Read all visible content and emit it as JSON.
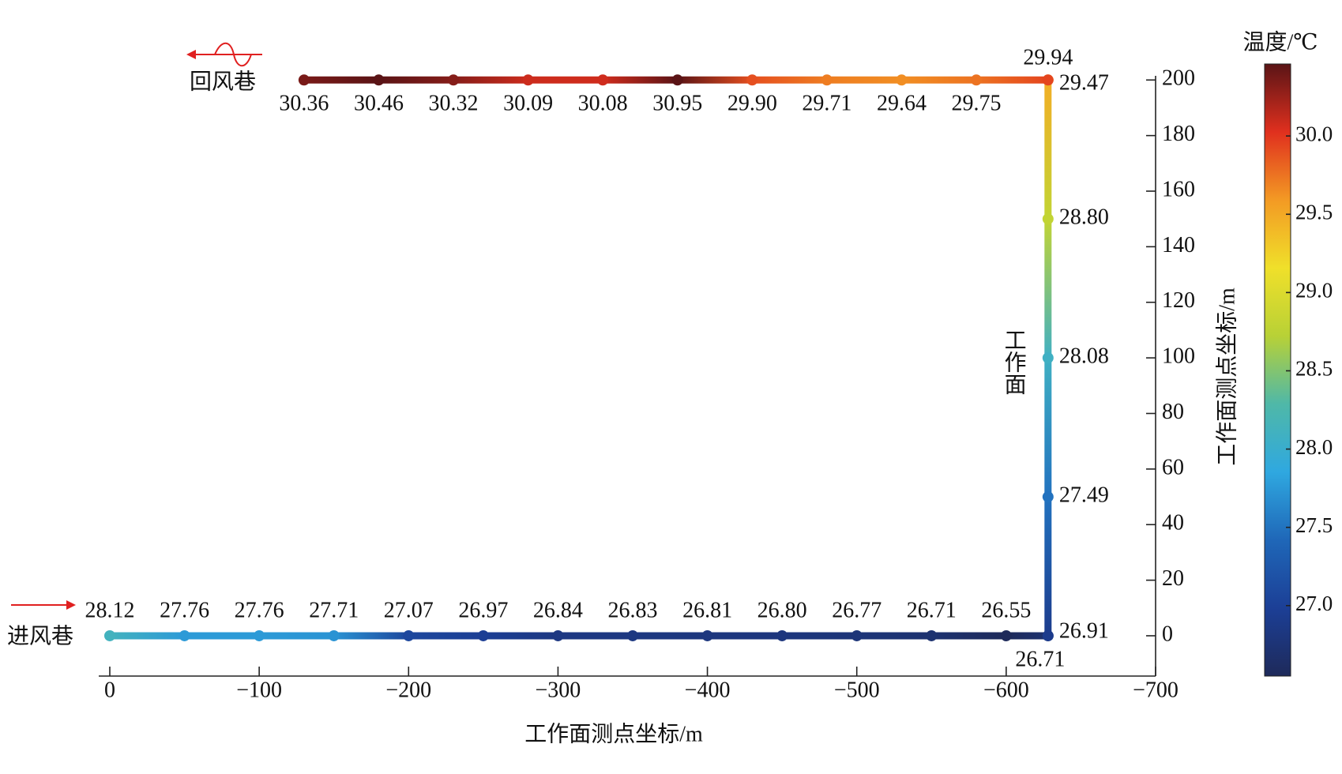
{
  "chart_data": {
    "type": "path-temperature",
    "x_label": "工作面测点坐标/m",
    "y_label": "工作面测点坐标/m",
    "xlim": [
      0,
      -700
    ],
    "xticks": [
      0,
      {
        "value": -100,
        "label": "−100"
      },
      {
        "value": -200,
        "label": "−200"
      },
      {
        "value": -300,
        "label": "−300"
      },
      {
        "value": -400,
        "label": "−400"
      },
      {
        "value": -500,
        "label": "−500"
      },
      {
        "value": -600,
        "label": "−600"
      },
      {
        "value": -700,
        "label": "−700"
      }
    ],
    "ylim": [
      -14.5,
      201.5
    ],
    "yticks": [
      0,
      20,
      40,
      60,
      80,
      100,
      120,
      140,
      160,
      180,
      200
    ],
    "grid": false,
    "colorbar": {
      "title": "温度/℃",
      "clim": [
        26.55,
        30.46
      ],
      "ticks": [
        {
          "value": 27,
          "label": "27.0"
        },
        {
          "value": 27.5,
          "label": "27.5"
        },
        {
          "value": 28,
          "label": "28.0"
        },
        {
          "value": 28.5,
          "label": "28.5"
        },
        {
          "value": 29,
          "label": "29.0"
        },
        {
          "value": 29.5,
          "label": "29.5"
        },
        {
          "value": 30,
          "label": "30.0"
        }
      ],
      "colormap": [
        "#1e2a5a",
        "#1c3f96",
        "#1f67b8",
        "#2fa8e0",
        "#4fb8a8",
        "#b8d136",
        "#f0e02a",
        "#f39a24",
        "#e0301e",
        "#5a1416"
      ]
    },
    "series": [
      {
        "name": "进风巷",
        "x": [
          0,
          -50,
          -100,
          -150,
          -200,
          -250,
          -300,
          -350,
          -400,
          -450,
          -500,
          -550,
          -600,
          -628
        ],
        "y": [
          0,
          0,
          0,
          0,
          0,
          0,
          0,
          0,
          0,
          0,
          0,
          0,
          0,
          0
        ],
        "values": [
          28.12,
          27.76,
          27.76,
          27.71,
          27.07,
          26.97,
          26.84,
          26.83,
          26.81,
          26.8,
          26.77,
          26.71,
          26.55,
          26.71
        ],
        "value_labels": [
          "28.12",
          "27.76",
          "27.76",
          "27.71",
          "27.07",
          "26.97",
          "26.84",
          "26.83",
          "26.81",
          "26.80",
          "26.77",
          "26.71",
          "26.55",
          "26.71"
        ]
      },
      {
        "name": "工作面",
        "x": [
          -628,
          -628,
          -628,
          -628,
          -628
        ],
        "y": [
          0,
          50,
          100,
          150,
          200
        ],
        "values": [
          26.91,
          27.49,
          28.08,
          28.8,
          29.47
        ],
        "value_labels": [
          "26.91",
          "27.49",
          "28.08",
          "28.80",
          "29.47"
        ]
      },
      {
        "name": "回风巷",
        "x": [
          -628,
          -580,
          -530,
          -480,
          -430,
          -380,
          -330,
          -280,
          -230,
          -180,
          -130
        ],
        "y": [
          200,
          200,
          200,
          200,
          200,
          200,
          200,
          200,
          200,
          200,
          200
        ],
        "values": [
          29.94,
          29.75,
          29.64,
          29.71,
          29.9,
          30.95,
          30.08,
          30.09,
          30.32,
          30.46,
          30.36
        ],
        "value_labels": [
          "29.94",
          "29.75",
          "29.64",
          "29.71",
          "29.90",
          "30.95",
          "30.08",
          "30.09",
          "30.32",
          "30.46",
          "30.36"
        ]
      }
    ]
  }
}
